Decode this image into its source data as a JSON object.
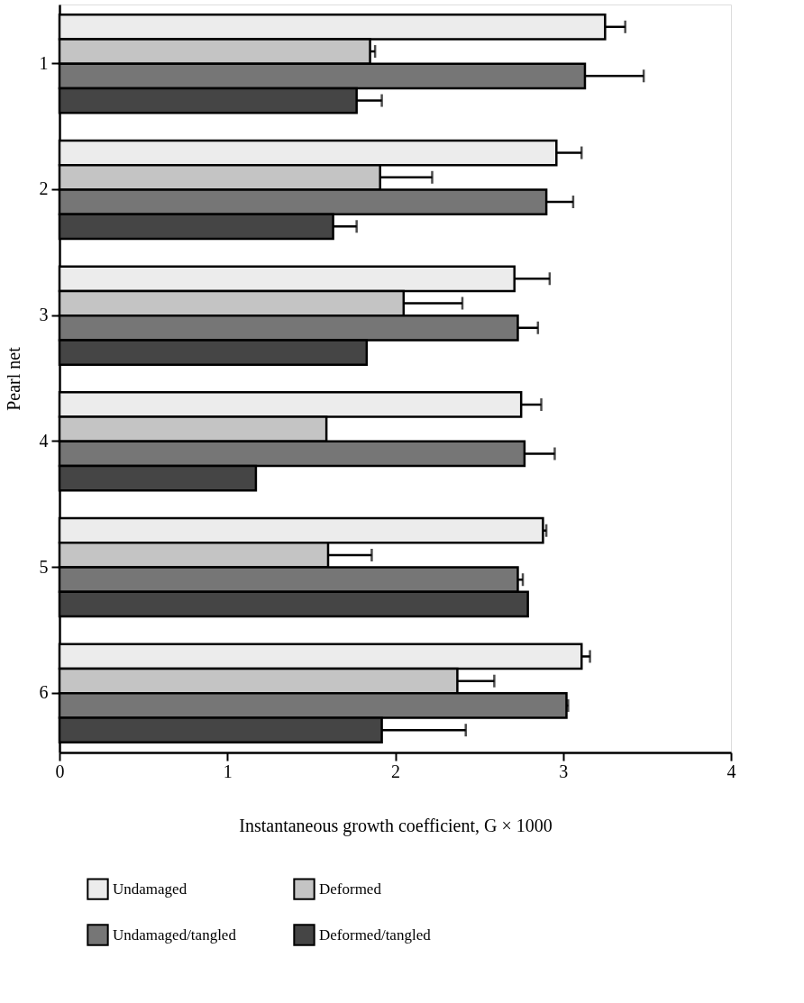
{
  "chart_data": {
    "type": "bar",
    "orientation": "horizontal",
    "xlabel": "Instantaneous growth coefficient, G × 1000",
    "ylabel": "Pearl net",
    "categories": [
      "1",
      "2",
      "3",
      "4",
      "5",
      "6"
    ],
    "xlim": [
      0,
      4
    ],
    "xticks": [
      0,
      1,
      2,
      3,
      4
    ],
    "grid": false,
    "legend": "bottom",
    "series": [
      {
        "name": "Undamaged",
        "color": "#ececec",
        "values": [
          3.25,
          2.96,
          2.71,
          2.75,
          2.88,
          3.11
        ],
        "errors": [
          0.12,
          0.15,
          0.21,
          0.12,
          0.02,
          0.05
        ]
      },
      {
        "name": "Deformed",
        "color": "#c4c4c4",
        "values": [
          1.85,
          1.91,
          2.05,
          1.59,
          1.6,
          2.37
        ],
        "errors": [
          0.03,
          0.31,
          0.35,
          null,
          0.26,
          0.22
        ]
      },
      {
        "name": "Undamaged/tangled",
        "color": "#767676",
        "values": [
          3.13,
          2.9,
          2.73,
          2.77,
          2.73,
          3.02
        ],
        "errors": [
          0.35,
          0.16,
          0.12,
          0.18,
          0.03,
          0.01
        ]
      },
      {
        "name": "Deformed/tangled",
        "color": "#454545",
        "values": [
          1.77,
          1.63,
          1.83,
          1.17,
          2.79,
          1.92
        ],
        "errors": [
          0.15,
          0.14,
          null,
          null,
          null,
          0.5
        ]
      }
    ]
  }
}
